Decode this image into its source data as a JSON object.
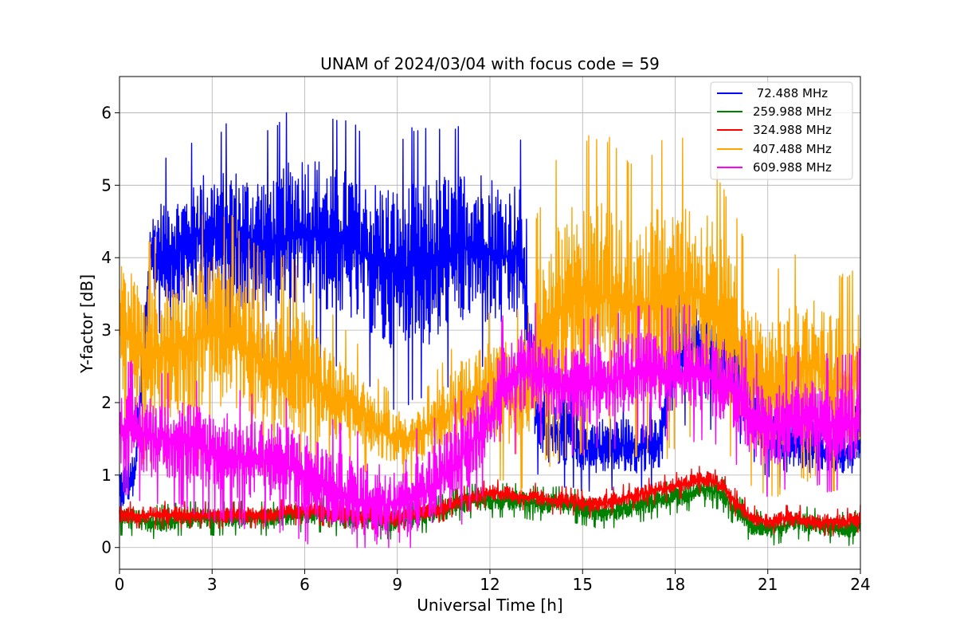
{
  "chart_data": {
    "type": "line",
    "title": "UNAM of 2024/03/04 with focus code = 59",
    "xlabel": "Universal Time [h]",
    "ylabel": "Y-factor [dB]",
    "xlim": [
      0,
      24
    ],
    "ylim": [
      -0.3,
      6.5
    ],
    "xticks": [
      0,
      3,
      6,
      9,
      12,
      15,
      18,
      21,
      24
    ],
    "yticks": [
      0,
      1,
      2,
      3,
      4,
      5,
      6
    ],
    "grid": true,
    "legend_position": "top-right",
    "colors": {
      "s72": "#0000ff",
      "s260": "#008000",
      "s325": "#ff0000",
      "s407": "#ffa500",
      "s610": "#ff00ff"
    },
    "series": [
      {
        "name": " 72.488 MHz",
        "color": "#0000ff",
        "sampling_step_h": 0.5,
        "x": [
          0.0,
          0.5,
          1.0,
          1.5,
          2.0,
          2.5,
          3.0,
          3.5,
          4.0,
          4.5,
          5.0,
          5.5,
          6.0,
          6.5,
          7.0,
          7.5,
          8.0,
          8.5,
          9.0,
          9.5,
          10.0,
          10.5,
          11.0,
          11.5,
          12.0,
          12.5,
          13.0,
          13.5,
          14.0,
          14.5,
          15.0,
          15.5,
          16.0,
          16.5,
          17.0,
          17.5,
          18.0,
          18.5,
          19.0,
          19.5,
          20.0,
          20.5,
          21.0,
          21.5,
          22.0,
          22.5,
          23.0,
          23.5,
          24.0
        ],
        "center": [
          0.8,
          1.0,
          4.0,
          4.1,
          4.1,
          4.3,
          4.3,
          4.3,
          4.2,
          4.2,
          4.2,
          4.3,
          4.4,
          4.3,
          4.2,
          4.2,
          4.0,
          3.9,
          3.8,
          3.9,
          3.9,
          4.0,
          4.1,
          4.2,
          4.1,
          4.0,
          4.1,
          1.8,
          1.6,
          1.6,
          1.4,
          1.4,
          1.4,
          1.4,
          1.4,
          1.4,
          2.7,
          2.8,
          2.7,
          2.6,
          2.4,
          2.0,
          1.6,
          1.4,
          1.4,
          1.4,
          1.3,
          1.3,
          1.4
        ],
        "amplitude": [
          0.3,
          0.3,
          0.6,
          0.8,
          0.8,
          0.9,
          0.9,
          1.0,
          1.0,
          1.0,
          1.0,
          1.1,
          1.1,
          1.1,
          1.1,
          1.1,
          1.1,
          1.2,
          1.2,
          1.2,
          1.2,
          1.2,
          1.1,
          1.1,
          1.1,
          1.0,
          1.0,
          0.5,
          0.5,
          0.5,
          0.4,
          0.4,
          0.4,
          0.4,
          0.4,
          0.4,
          0.7,
          0.7,
          0.7,
          0.6,
          0.6,
          0.5,
          0.4,
          0.4,
          0.4,
          0.4,
          0.3,
          0.3,
          0.4
        ]
      },
      {
        "name": "259.988 MHz",
        "color": "#008000",
        "sampling_step_h": 0.5,
        "x": [
          0.0,
          0.5,
          1.0,
          1.5,
          2.0,
          2.5,
          3.0,
          3.5,
          4.0,
          4.5,
          5.0,
          5.5,
          6.0,
          6.5,
          7.0,
          7.5,
          8.0,
          8.5,
          9.0,
          9.5,
          10.0,
          10.5,
          11.0,
          11.5,
          12.0,
          12.5,
          13.0,
          13.5,
          14.0,
          14.5,
          15.0,
          15.5,
          16.0,
          16.5,
          17.0,
          17.5,
          18.0,
          18.5,
          19.0,
          19.5,
          20.0,
          20.5,
          21.0,
          21.5,
          22.0,
          22.5,
          23.0,
          23.5,
          24.0
        ],
        "center": [
          0.4,
          0.4,
          0.35,
          0.35,
          0.4,
          0.4,
          0.4,
          0.4,
          0.4,
          0.4,
          0.4,
          0.45,
          0.45,
          0.45,
          0.4,
          0.4,
          0.4,
          0.35,
          0.35,
          0.4,
          0.45,
          0.5,
          0.6,
          0.65,
          0.65,
          0.65,
          0.65,
          0.6,
          0.6,
          0.6,
          0.55,
          0.5,
          0.5,
          0.55,
          0.6,
          0.65,
          0.7,
          0.75,
          0.8,
          0.75,
          0.5,
          0.3,
          0.25,
          0.3,
          0.35,
          0.3,
          0.3,
          0.25,
          0.3
        ],
        "amplitude": [
          0.15,
          0.15,
          0.15,
          0.15,
          0.15,
          0.15,
          0.15,
          0.15,
          0.15,
          0.15,
          0.15,
          0.15,
          0.15,
          0.15,
          0.15,
          0.15,
          0.15,
          0.15,
          0.15,
          0.15,
          0.15,
          0.15,
          0.15,
          0.15,
          0.15,
          0.15,
          0.15,
          0.15,
          0.15,
          0.15,
          0.15,
          0.15,
          0.15,
          0.15,
          0.15,
          0.15,
          0.15,
          0.15,
          0.15,
          0.15,
          0.15,
          0.15,
          0.15,
          0.15,
          0.15,
          0.15,
          0.15,
          0.15,
          0.15
        ]
      },
      {
        "name": "324.988 MHz",
        "color": "#ff0000",
        "sampling_step_h": 0.5,
        "x": [
          0.0,
          0.5,
          1.0,
          1.5,
          2.0,
          2.5,
          3.0,
          3.5,
          4.0,
          4.5,
          5.0,
          5.5,
          6.0,
          6.5,
          7.0,
          7.5,
          8.0,
          8.5,
          9.0,
          9.5,
          10.0,
          10.5,
          11.0,
          11.5,
          12.0,
          12.5,
          13.0,
          13.5,
          14.0,
          14.5,
          15.0,
          15.5,
          16.0,
          16.5,
          17.0,
          17.5,
          18.0,
          18.5,
          19.0,
          19.5,
          20.0,
          20.5,
          21.0,
          21.5,
          22.0,
          22.5,
          23.0,
          23.5,
          24.0
        ],
        "center": [
          0.45,
          0.45,
          0.45,
          0.45,
          0.45,
          0.45,
          0.45,
          0.45,
          0.45,
          0.45,
          0.45,
          0.5,
          0.5,
          0.5,
          0.45,
          0.45,
          0.45,
          0.4,
          0.4,
          0.45,
          0.5,
          0.55,
          0.65,
          0.7,
          0.75,
          0.75,
          0.7,
          0.7,
          0.65,
          0.65,
          0.6,
          0.6,
          0.65,
          0.7,
          0.75,
          0.8,
          0.85,
          0.9,
          0.95,
          0.85,
          0.6,
          0.4,
          0.35,
          0.4,
          0.4,
          0.35,
          0.35,
          0.35,
          0.4
        ],
        "amplitude": [
          0.12,
          0.12,
          0.12,
          0.12,
          0.12,
          0.12,
          0.12,
          0.12,
          0.12,
          0.12,
          0.12,
          0.12,
          0.12,
          0.12,
          0.12,
          0.12,
          0.12,
          0.12,
          0.12,
          0.12,
          0.12,
          0.12,
          0.12,
          0.12,
          0.12,
          0.12,
          0.12,
          0.12,
          0.12,
          0.12,
          0.12,
          0.12,
          0.12,
          0.12,
          0.12,
          0.12,
          0.12,
          0.12,
          0.12,
          0.12,
          0.12,
          0.12,
          0.12,
          0.12,
          0.12,
          0.12,
          0.12,
          0.12,
          0.12
        ]
      },
      {
        "name": "407.488 MHz",
        "color": "#ffa500",
        "sampling_step_h": 0.5,
        "x": [
          0.0,
          0.5,
          1.0,
          1.5,
          2.0,
          2.5,
          3.0,
          3.5,
          4.0,
          4.5,
          5.0,
          5.5,
          6.0,
          6.5,
          7.0,
          7.5,
          8.0,
          8.5,
          9.0,
          9.5,
          10.0,
          10.5,
          11.0,
          11.5,
          12.0,
          12.5,
          13.0,
          13.5,
          14.0,
          14.5,
          15.0,
          15.5,
          16.0,
          16.5,
          17.0,
          17.5,
          18.0,
          18.5,
          19.0,
          19.5,
          20.0,
          20.5,
          21.0,
          21.5,
          22.0,
          22.5,
          23.0,
          23.5,
          24.0
        ],
        "center": [
          3.0,
          2.8,
          2.7,
          2.7,
          2.8,
          2.9,
          3.0,
          2.9,
          2.8,
          2.6,
          2.5,
          2.5,
          2.4,
          2.2,
          2.1,
          2.0,
          1.8,
          1.6,
          1.5,
          1.5,
          1.6,
          1.8,
          2.0,
          2.1,
          2.2,
          2.1,
          2.0,
          2.8,
          3.2,
          3.4,
          3.5,
          3.5,
          3.4,
          3.3,
          3.3,
          3.4,
          3.5,
          3.5,
          3.4,
          3.2,
          2.8,
          2.4,
          2.2,
          2.3,
          2.5,
          2.5,
          2.3,
          2.2,
          2.4
        ],
        "amplitude": [
          1.0,
          1.0,
          1.0,
          1.0,
          1.1,
          1.1,
          1.1,
          1.1,
          1.0,
          1.0,
          1.0,
          1.0,
          0.9,
          0.8,
          0.7,
          0.6,
          0.5,
          0.4,
          0.4,
          0.4,
          0.4,
          0.5,
          0.6,
          0.6,
          0.7,
          0.8,
          0.8,
          1.1,
          1.3,
          1.4,
          1.4,
          1.4,
          1.4,
          1.3,
          1.3,
          1.4,
          1.4,
          1.3,
          1.3,
          1.2,
          1.1,
          1.0,
          1.0,
          1.0,
          1.0,
          1.0,
          1.0,
          1.0,
          1.0
        ]
      },
      {
        "name": "609.988 MHz",
        "color": "#ff00ff",
        "sampling_step_h": 0.5,
        "x": [
          0.0,
          0.5,
          1.0,
          1.5,
          2.0,
          2.5,
          3.0,
          3.5,
          4.0,
          4.5,
          5.0,
          5.5,
          6.0,
          6.5,
          7.0,
          7.5,
          8.0,
          8.5,
          9.0,
          9.5,
          10.0,
          10.5,
          11.0,
          11.5,
          12.0,
          12.5,
          13.0,
          13.5,
          14.0,
          14.5,
          15.0,
          15.5,
          16.0,
          16.5,
          17.0,
          17.5,
          18.0,
          18.5,
          19.0,
          19.5,
          20.0,
          20.5,
          21.0,
          21.5,
          22.0,
          22.5,
          23.0,
          23.5,
          24.0
        ],
        "center": [
          1.7,
          1.6,
          1.5,
          1.5,
          1.5,
          1.4,
          1.3,
          1.3,
          1.2,
          1.2,
          1.2,
          1.1,
          1.0,
          0.9,
          0.8,
          0.7,
          0.6,
          0.6,
          0.6,
          0.7,
          0.8,
          1.0,
          1.2,
          1.5,
          1.8,
          2.2,
          2.5,
          2.4,
          2.3,
          2.2,
          2.2,
          2.3,
          2.3,
          2.4,
          2.4,
          2.4,
          2.4,
          2.4,
          2.4,
          2.3,
          2.1,
          1.8,
          1.6,
          1.7,
          1.8,
          1.8,
          1.7,
          1.7,
          1.8
        ],
        "amplitude": [
          0.6,
          0.6,
          0.6,
          0.6,
          0.6,
          0.6,
          0.6,
          0.6,
          0.6,
          0.6,
          0.6,
          0.6,
          0.6,
          0.6,
          0.6,
          0.6,
          0.6,
          0.6,
          0.6,
          0.6,
          0.6,
          0.6,
          0.6,
          0.6,
          0.6,
          0.7,
          0.7,
          0.6,
          0.6,
          0.6,
          0.6,
          0.6,
          0.6,
          0.6,
          0.6,
          0.6,
          0.6,
          0.6,
          0.6,
          0.6,
          0.6,
          0.6,
          0.6,
          0.6,
          0.6,
          0.6,
          0.6,
          0.6,
          0.6
        ]
      }
    ]
  }
}
